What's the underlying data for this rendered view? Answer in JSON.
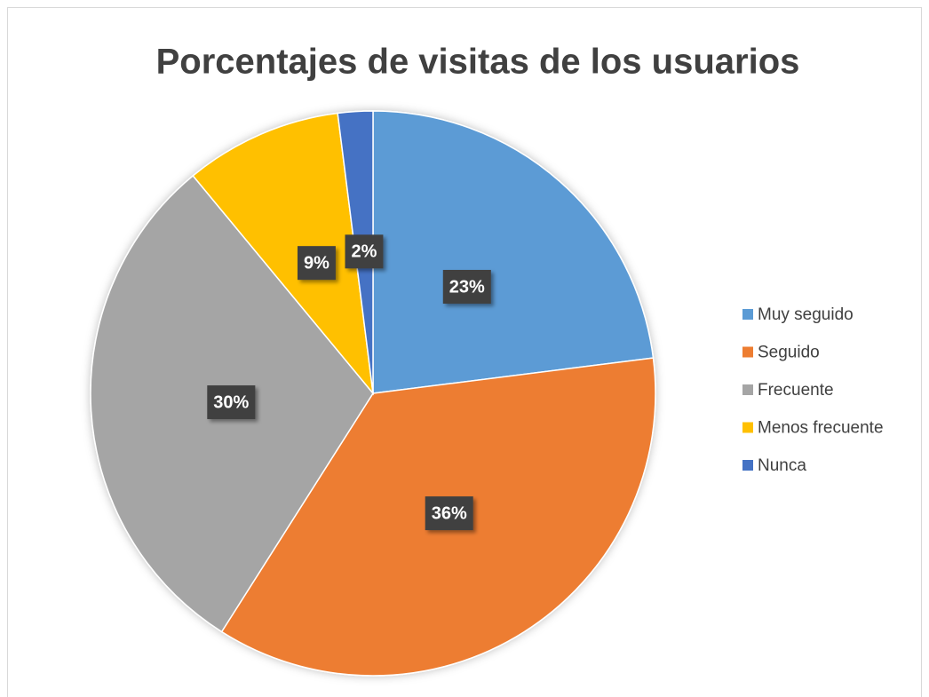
{
  "chart_data": {
    "type": "pie",
    "title": "Porcentajes de visitas de los usuarios",
    "categories": [
      "Muy seguido",
      "Seguido",
      "Frecuente",
      "Menos frecuente",
      "Nunca"
    ],
    "values": [
      23,
      36,
      30,
      9,
      2
    ],
    "value_labels": [
      "23%",
      "36%",
      "30%",
      "9%",
      "2%"
    ],
    "colors": [
      "#5b9bd5",
      "#ed7d31",
      "#a5a5a5",
      "#ffc000",
      "#4472c4"
    ],
    "legend": "right"
  }
}
